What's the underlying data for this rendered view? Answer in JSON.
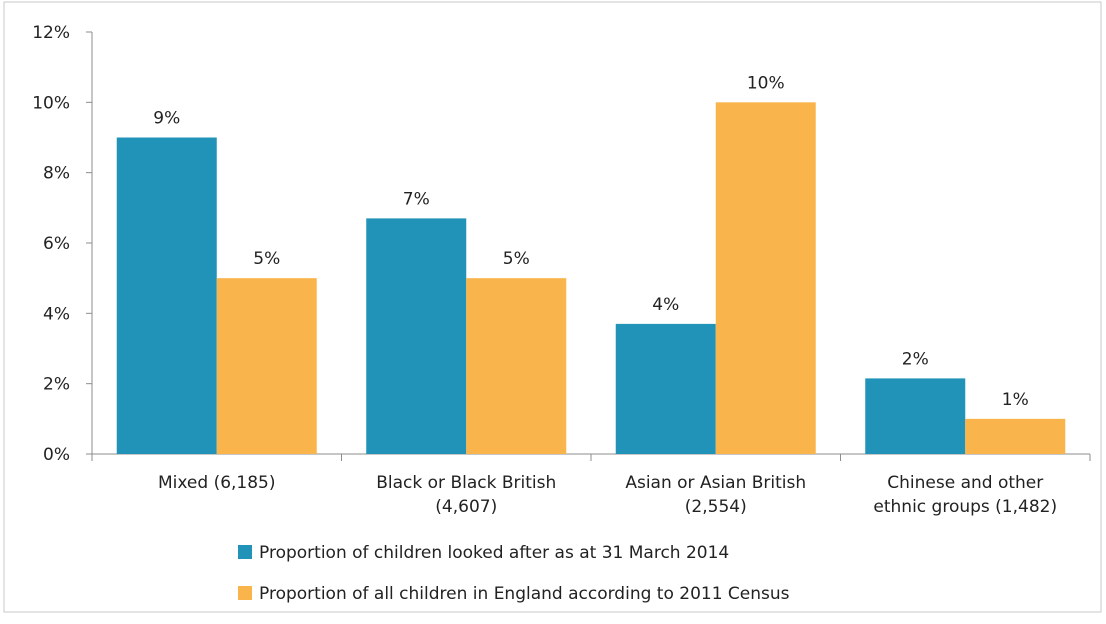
{
  "chart_data": {
    "type": "bar",
    "title": "",
    "xlabel": "",
    "ylabel": "",
    "ylim": [
      0,
      12
    ],
    "yticks": [
      0,
      2,
      4,
      6,
      8,
      10,
      12
    ],
    "ytick_labels": [
      "0%",
      "2%",
      "4%",
      "6%",
      "8%",
      "10%",
      "12%"
    ],
    "grid": false,
    "legend_position": "bottom",
    "categories": [
      [
        "Mixed (6,185)"
      ],
      [
        "Black or Black British",
        "(4,607)"
      ],
      [
        "Asian or Asian British",
        "(2,554)"
      ],
      [
        "Chinese and other",
        "ethnic groups (1,482)"
      ]
    ],
    "series": [
      {
        "name": "Proportion of children looked after as at 31 March 2014",
        "color": "#2193b8",
        "values": [
          9.0,
          6.7,
          3.7,
          2.15
        ],
        "labels": [
          "9%",
          "7%",
          "4%",
          "2%"
        ]
      },
      {
        "name": "Proportion of all children in England according to 2011 Census",
        "color": "#f9b54b",
        "values": [
          5.0,
          5.0,
          10.0,
          1.0
        ],
        "labels": [
          "5%",
          "5%",
          "10%",
          "1%"
        ]
      }
    ]
  }
}
